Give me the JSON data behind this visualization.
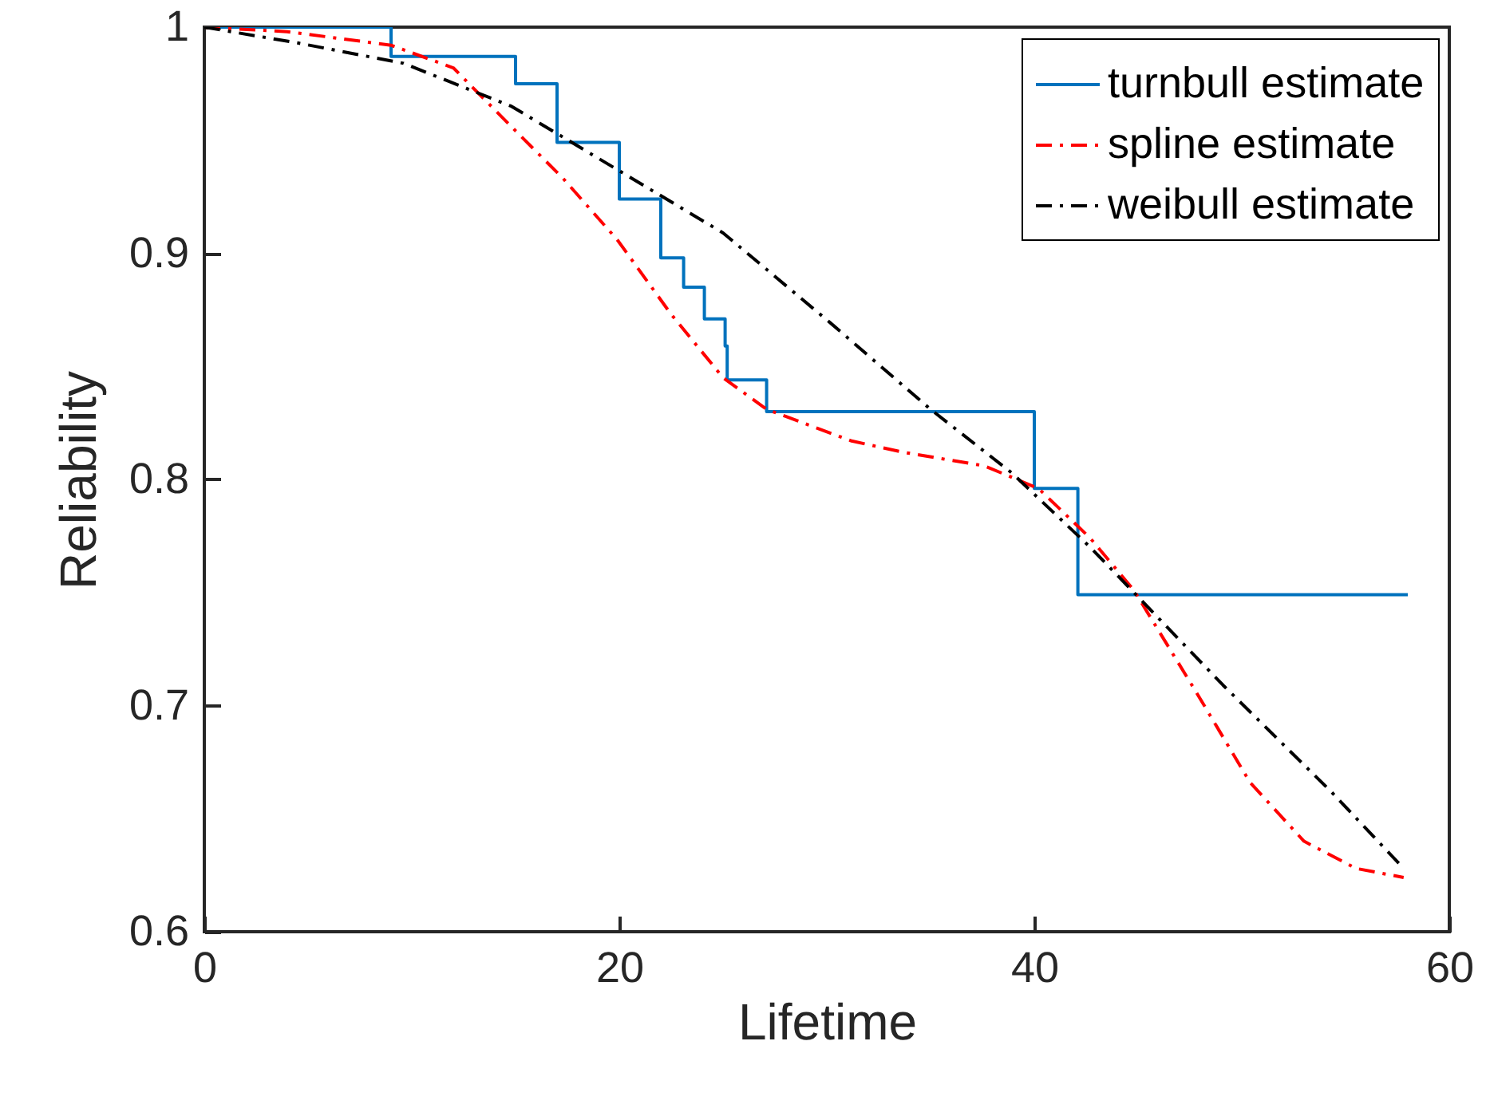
{
  "chart_data": {
    "type": "line",
    "xlabel": "Lifetime",
    "ylabel": "Reliability",
    "xlim": [
      0,
      60
    ],
    "xticks": [
      0,
      20,
      40,
      60
    ],
    "ylim": [
      0.6,
      1
    ],
    "yticks": [
      0.6,
      0.7,
      0.8,
      0.9,
      {
        "value": 1,
        "label": "1"
      }
    ],
    "grid": false,
    "legend": "top right",
    "series": [
      {
        "name": "turnbull estimate",
        "type": "step",
        "color": "#0072bd",
        "line_style": "solid",
        "x": [
          0,
          9,
          15,
          17,
          20,
          22,
          23.1,
          24.1,
          25.1,
          25.2,
          27.1,
          40,
          42.1,
          58
        ],
        "values": [
          1,
          0.987,
          0.975,
          0.949,
          0.924,
          0.898,
          0.885,
          0.871,
          0.859,
          0.844,
          0.83,
          0.796,
          0.749,
          0.749
        ]
      },
      {
        "name": "spline estimate",
        "color": "#ff0000",
        "line_style": "dashed",
        "x": [
          0,
          4,
          9,
          12,
          14.8,
          17.3,
          19.9,
          22.5,
          25,
          27.1,
          31.2,
          33.7,
          37.6,
          40.2,
          42.7,
          44.8,
          47.8,
          50.4,
          53,
          55.5,
          57.8
        ],
        "values": [
          1,
          0.998,
          0.992,
          0.982,
          0.956,
          0.933,
          0.906,
          0.873,
          0.845,
          0.831,
          0.817,
          0.812,
          0.806,
          0.796,
          0.774,
          0.751,
          0.706,
          0.666,
          0.64,
          0.628,
          0.624
        ]
      },
      {
        "name": "weibull estimate",
        "color": "#000000",
        "line_style": "dashed",
        "x": [
          0,
          4.5,
          9.6,
          14.8,
          19.9,
          25,
          30.2,
          35,
          38.9,
          42.7,
          49.1,
          54.3,
          57.8
        ],
        "values": [
          1,
          0.993,
          0.984,
          0.965,
          0.937,
          0.909,
          0.869,
          0.831,
          0.803,
          0.77,
          0.709,
          0.662,
          0.628
        ]
      }
    ]
  }
}
